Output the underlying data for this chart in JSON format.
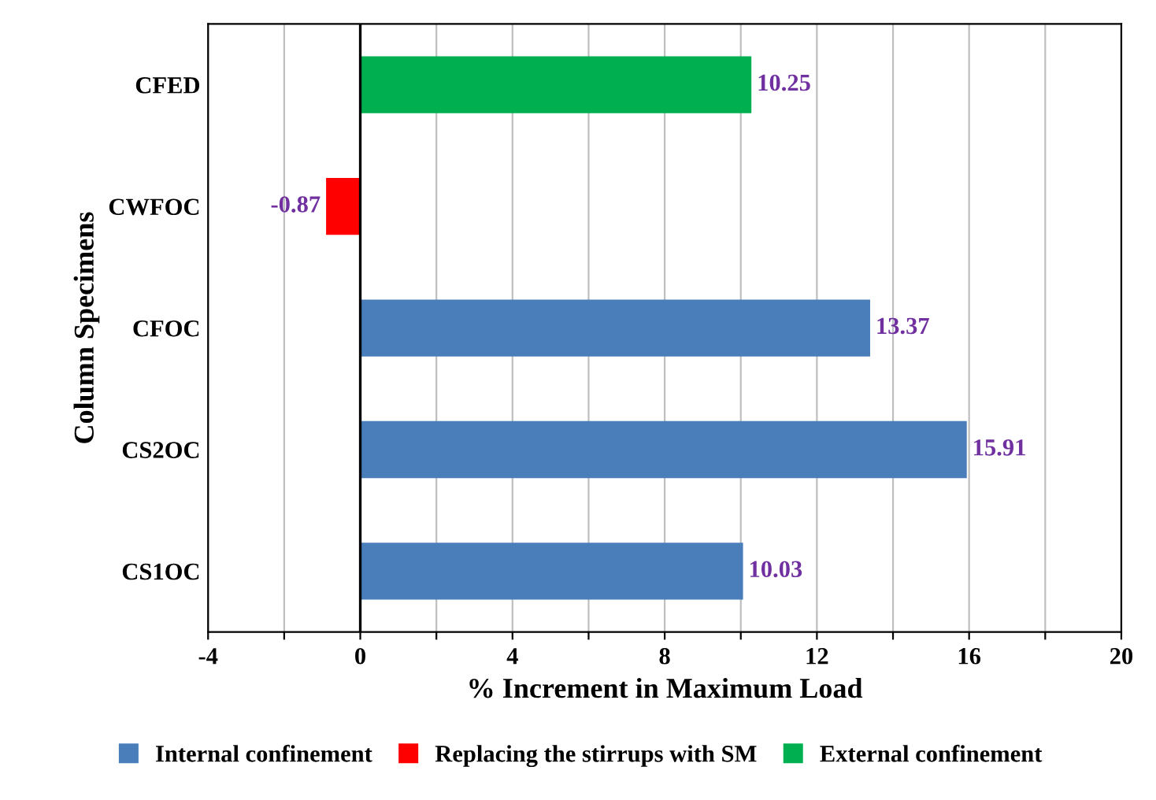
{
  "chart_data": {
    "type": "bar",
    "orientation": "horizontal",
    "xlabel": "% Increment in Maximum Load",
    "ylabel": "Column Specimens",
    "categories": [
      "CFED",
      "CWFOC",
      "CFOC",
      "CS2OC",
      "CS1OC"
    ],
    "series": [
      {
        "name": "Internal confinement",
        "color": "#4a7ebb",
        "values": [
          null,
          null,
          13.37,
          15.91,
          10.03
        ]
      },
      {
        "name": "Replacing the stirrups with SM",
        "color": "#ff0000",
        "values": [
          null,
          -0.87,
          null,
          null,
          null
        ]
      },
      {
        "name": "External confinement",
        "color": "#00b050",
        "values": [
          10.25,
          null,
          null,
          null,
          null
        ]
      }
    ],
    "xlim": [
      -4,
      20
    ],
    "xticks": [
      -4,
      {
        "value": -2,
        "label": null
      },
      0,
      {
        "value": 2,
        "label": null
      },
      4,
      {
        "value": 6,
        "label": null
      },
      8,
      {
        "value": 10,
        "label": null
      },
      12,
      {
        "value": 14,
        "label": null
      },
      16,
      {
        "value": 18,
        "label": null
      },
      20
    ],
    "ref_lines": [
      {
        "axis": "x",
        "value": 0,
        "color": "#000000"
      }
    ],
    "grid": "x",
    "legend": "bottom",
    "data_labels": true
  }
}
